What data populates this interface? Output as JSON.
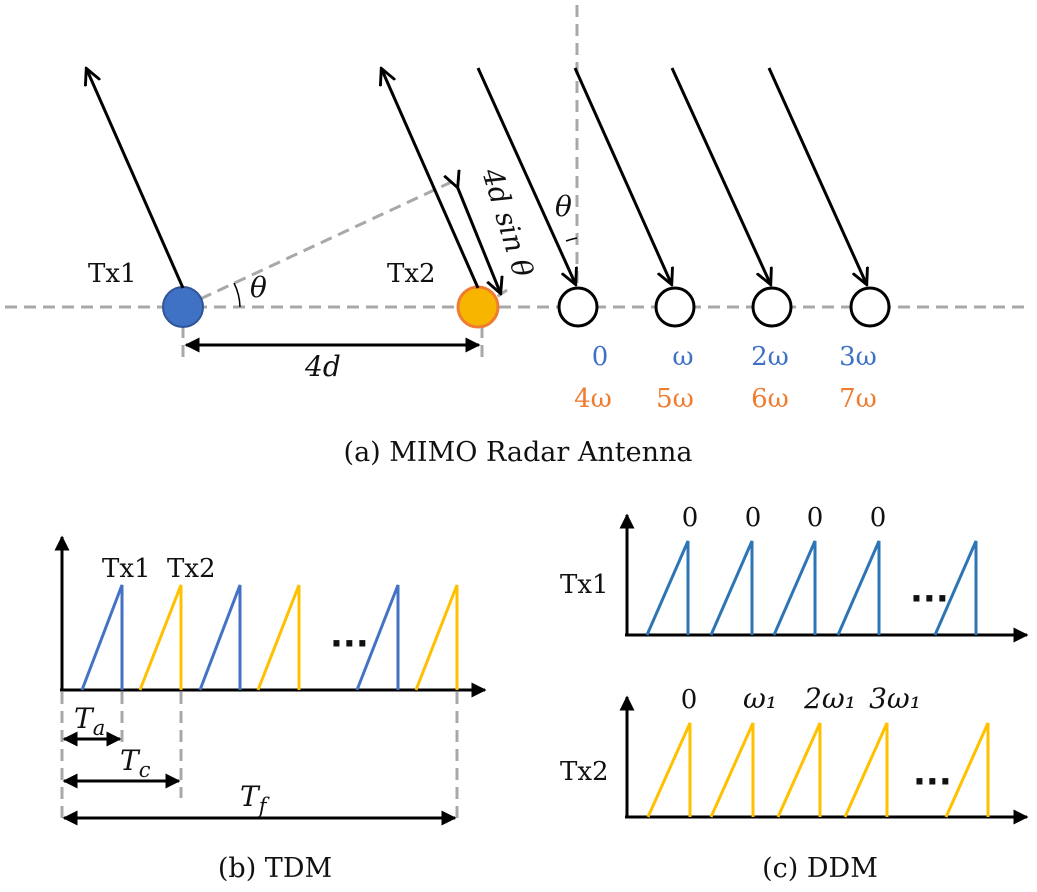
{
  "panel_a": {
    "caption": "(a) MIMO Radar Antenna",
    "tx1_label": "Tx1",
    "tx2_label": "Tx2",
    "theta_symbol": "θ",
    "theta_top_symbol": "θ",
    "spacing_label": "4d",
    "path_diff_label": "4d sin θ",
    "phases_tx1": [
      "0",
      "ω",
      "2ω",
      "3ω"
    ],
    "phases_tx2": [
      "4ω",
      "5ω",
      "6ω",
      "7ω"
    ],
    "colors": {
      "tx1": "#3f72c5",
      "tx2": "#ee7d32",
      "tx2_fill": "#f7b500"
    }
  },
  "panel_b": {
    "caption": "(b) TDM",
    "tx1_label": "Tx1",
    "tx2_label": "Tx2",
    "ellipsis": "···",
    "ta_label": "T",
    "ta_sub": "a",
    "tc_label": "T",
    "tc_sub": "c",
    "tf_label": "T",
    "tf_sub": "f"
  },
  "panel_c": {
    "caption": "(c) DDM",
    "tx1_label": "Tx1",
    "tx2_label": "Tx2",
    "ellipsis": "···",
    "tx1_phases": [
      "0",
      "0",
      "0",
      "0"
    ],
    "tx2_phases": [
      "0",
      "ω₁",
      "2ω₁",
      "3ω₁"
    ]
  }
}
